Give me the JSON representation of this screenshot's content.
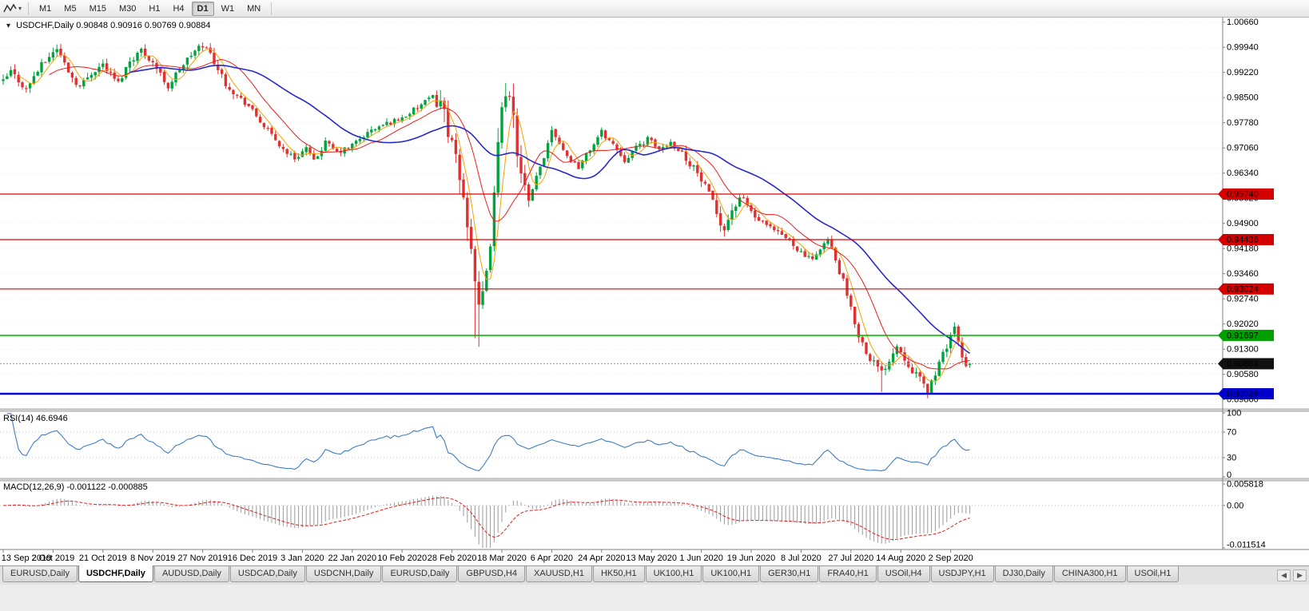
{
  "toolbar": {
    "timeframes": [
      {
        "label": "M1",
        "active": false
      },
      {
        "label": "M5",
        "active": false
      },
      {
        "label": "M15",
        "active": false
      },
      {
        "label": "M30",
        "active": false
      },
      {
        "label": "H1",
        "active": false
      },
      {
        "label": "H4",
        "active": false
      },
      {
        "label": "D1",
        "active": true
      },
      {
        "label": "W1",
        "active": false
      },
      {
        "label": "MN",
        "active": false
      }
    ]
  },
  "icons": {
    "legend_marker": "▾",
    "tool_caret": "▾",
    "tab_scroll_left": "◀",
    "tab_scroll_right": "▶"
  },
  "chart": {
    "legend_symbol": "USDCHF,Daily",
    "legend_ohlc": "0.90848 0.90916 0.90769 0.90884",
    "candle_up_color": "#00A33E",
    "candle_down_color": "#E03030",
    "grid_color": "#ededed",
    "axis_color": "#808080",
    "price_axis": {
      "labels": [
        "1.00660",
        "0.99940",
        "0.99220",
        "0.98500",
        "0.97780",
        "0.97060",
        "0.96340",
        "0.95620",
        "0.94900",
        "0.94180",
        "0.93460",
        "0.92740",
        "0.92020",
        "0.91300",
        "0.90580",
        "0.89860"
      ]
    }
  },
  "rsi": {
    "label": "RSI(14) 46.6946",
    "period": 14,
    "value": 46.6946,
    "color": "#3F7CC4",
    "scale_labels": [
      {
        "text": "100",
        "value": 100
      },
      {
        "text": "70",
        "value": 70
      },
      {
        "text": "30",
        "value": 30
      },
      {
        "text": "0",
        "value": 0
      }
    ],
    "level_lines": [
      70,
      30
    ]
  },
  "macd": {
    "label": "MACD(12,26,9) -0.001122 -0.000885",
    "params": "12,26,9",
    "main_value": -0.001122,
    "signal_value": -0.000885,
    "histogram_color": "#9B9B9B",
    "signal_color": "#E02020",
    "axis_labels": [
      {
        "text": "0.005818",
        "value": 0.005818
      },
      {
        "text": "0.00",
        "value": 0
      },
      {
        "text": "-0.011514",
        "value": -0.011514
      }
    ]
  },
  "tabs": [
    {
      "label": "EURUSD,Daily",
      "active": false
    },
    {
      "label": "USDCHF,Daily",
      "active": true
    },
    {
      "label": "AUDUSD,Daily",
      "active": false
    },
    {
      "label": "USDCAD,Daily",
      "active": false
    },
    {
      "label": "USDCNH,Daily",
      "active": false
    },
    {
      "label": "EURUSD,Daily",
      "active": false
    },
    {
      "label": "GBPUSD,H4",
      "active": false
    },
    {
      "label": "XAUUSD,H1",
      "active": false
    },
    {
      "label": "HK50,H1",
      "active": false
    },
    {
      "label": "UK100,H1",
      "active": false
    },
    {
      "label": "UK100,H1",
      "active": false
    },
    {
      "label": "GER30,H1",
      "active": false
    },
    {
      "label": "FRA40,H1",
      "active": false
    },
    {
      "label": "USOil,H4",
      "active": false
    },
    {
      "label": "USDJPY,H1",
      "active": false
    },
    {
      "label": "DJ30,Daily",
      "active": false
    },
    {
      "label": "CHINA300,H1",
      "active": false
    },
    {
      "label": "USOil,H1",
      "active": false
    }
  ],
  "chart_data": {
    "type": "candlestick",
    "symbol": "USDCHF",
    "timeframe": "Daily",
    "bars": 253,
    "y_range": [
      0.8959,
      1.0079
    ],
    "last_bar": {
      "open": 0.90848,
      "high": 0.90916,
      "low": 0.90769,
      "close": 0.90884
    },
    "date_labels": [
      "13 Sep 2019",
      "2 Oct 2019",
      "21 Oct 2019",
      "8 Nov 2019",
      "27 Nov 2019",
      "16 Dec 2019",
      "3 Jan 2020",
      "22 Jan 2020",
      "10 Feb 2020",
      "28 Feb 2020",
      "18 Mar 2020",
      "6 Apr 2020",
      "24 Apr 2020",
      "13 May 2020",
      "1 Jun 2020",
      "19 Jun 2020",
      "8 Jul 2020",
      "27 Jul 2020",
      "14 Aug 2020",
      "2 Sep 2020"
    ],
    "date_label_step": 13,
    "anchors": [
      [
        0,
        0.9895
      ],
      [
        2,
        0.9925
      ],
      [
        4,
        0.99
      ],
      [
        6,
        0.9872
      ],
      [
        8,
        0.9912
      ],
      [
        10,
        0.9942
      ],
      [
        12,
        0.9968
      ],
      [
        14,
        0.9992
      ],
      [
        16,
        0.9948
      ],
      [
        18,
        0.9908
      ],
      [
        20,
        0.9882
      ],
      [
        23,
        0.9922
      ],
      [
        26,
        0.9946
      ],
      [
        28,
        0.9916
      ],
      [
        30,
        0.9892
      ],
      [
        33,
        0.9956
      ],
      [
        36,
        0.9986
      ],
      [
        39,
        0.9952
      ],
      [
        41,
        0.9916
      ],
      [
        43,
        0.9882
      ],
      [
        46,
        0.9932
      ],
      [
        49,
        0.9972
      ],
      [
        52,
        1.0002
      ],
      [
        54,
        0.9976
      ],
      [
        56,
        0.9932
      ],
      [
        58,
        0.9892
      ],
      [
        61,
        0.9856
      ],
      [
        64,
        0.9826
      ],
      [
        67,
        0.9782
      ],
      [
        70,
        0.9742
      ],
      [
        73,
        0.9702
      ],
      [
        76,
        0.9676
      ],
      [
        79,
        0.9706
      ],
      [
        81,
        0.9666
      ],
      [
        84,
        0.9722
      ],
      [
        87,
        0.9692
      ],
      [
        90,
        0.9706
      ],
      [
        93,
        0.9732
      ],
      [
        96,
        0.9756
      ],
      [
        100,
        0.9776
      ],
      [
        104,
        0.9792
      ],
      [
        108,
        0.9822
      ],
      [
        112,
        0.9852
      ],
      [
        114,
        0.9842
      ],
      [
        116,
        0.9762
      ],
      [
        118,
        0.9662
      ],
      [
        120,
        0.9562
      ],
      [
        122,
        0.9432
      ],
      [
        124,
        0.9232
      ],
      [
        126,
        0.9332
      ],
      [
        128,
        0.9562
      ],
      [
        130,
        0.9842
      ],
      [
        131,
        0.9878
      ],
      [
        133,
        0.9782
      ],
      [
        135,
        0.9622
      ],
      [
        137,
        0.9542
      ],
      [
        139,
        0.9622
      ],
      [
        141,
        0.9682
      ],
      [
        143,
        0.9762
      ],
      [
        145,
        0.9722
      ],
      [
        147,
        0.9682
      ],
      [
        150,
        0.9652
      ],
      [
        153,
        0.9702
      ],
      [
        156,
        0.9752
      ],
      [
        159,
        0.9716
      ],
      [
        162,
        0.9672
      ],
      [
        165,
        0.9706
      ],
      [
        168,
        0.9732
      ],
      [
        171,
        0.9702
      ],
      [
        174,
        0.9722
      ],
      [
        177,
        0.9692
      ],
      [
        180,
        0.9652
      ],
      [
        183,
        0.9592
      ],
      [
        186,
        0.9522
      ],
      [
        188,
        0.9472
      ],
      [
        190,
        0.9532
      ],
      [
        193,
        0.9562
      ],
      [
        196,
        0.9506
      ],
      [
        199,
        0.9482
      ],
      [
        202,
        0.9462
      ],
      [
        205,
        0.9442
      ],
      [
        208,
        0.9406
      ],
      [
        211,
        0.9382
      ],
      [
        213,
        0.9422
      ],
      [
        215,
        0.9442
      ],
      [
        217,
        0.9382
      ],
      [
        219,
        0.9322
      ],
      [
        221,
        0.9242
      ],
      [
        223,
        0.9172
      ],
      [
        225,
        0.9122
      ],
      [
        227,
        0.9092
      ],
      [
        229,
        0.9062
      ],
      [
        231,
        0.9102
      ],
      [
        233,
        0.9142
      ],
      [
        235,
        0.9106
      ],
      [
        237,
        0.9072
      ],
      [
        239,
        0.9042
      ],
      [
        241,
        0.9012
      ],
      [
        243,
        0.9062
      ],
      [
        245,
        0.9112
      ],
      [
        247,
        0.9172
      ],
      [
        248,
        0.9196
      ],
      [
        249,
        0.9142
      ],
      [
        250,
        0.9102
      ],
      [
        251,
        0.9076
      ],
      [
        252,
        0.90884
      ]
    ],
    "base_volatility": 0.0012,
    "volatility_zones": [
      [
        0,
        60,
        0.0016
      ],
      [
        113,
        137,
        0.0045
      ],
      [
        178,
        192,
        0.0022
      ],
      [
        216,
        252,
        0.0018
      ]
    ],
    "key_extremes": {
      "lows": [
        [
          123,
          0.9162
        ],
        [
          124,
          0.9137
        ],
        [
          229,
          0.9008
        ],
        [
          241,
          0.8996
        ]
      ],
      "highs": [
        [
          14,
          1.0002
        ],
        [
          52,
          1.0008
        ],
        [
          131,
          0.9892
        ],
        [
          248,
          0.9207
        ]
      ]
    },
    "moving_averages": [
      {
        "period": 5,
        "color": "#F5A300",
        "width": 1
      },
      {
        "period": 13,
        "color": "#EE1C1C",
        "width": 1
      },
      {
        "period": 34,
        "color": "#2828CF",
        "width": 1.6
      }
    ],
    "levels": [
      {
        "price": 0.9574,
        "text": "0.95740",
        "line_color": "#E00000",
        "tag_bg": "#D40000",
        "width": 1.2
      },
      {
        "price": 0.94436,
        "text": "0.94436",
        "line_color": "#E00000",
        "tag_bg": "#D40000",
        "width": 1.2
      },
      {
        "price": 0.93024,
        "text": "0.93024",
        "line_color": "#E00000",
        "tag_bg": "#D40000",
        "width": 1.2
      },
      {
        "price": 0.91697,
        "text": "0.91697",
        "line_color": "#00C000",
        "tag_bg": "#00A000",
        "width": 1.6
      },
      {
        "price": 0.90026,
        "text": "0.90026",
        "line_color": "#0000E0",
        "tag_bg": "#0000CC",
        "width": 2.6
      }
    ],
    "current_price": {
      "text": "0.90884",
      "price": 0.90884,
      "tag_bg": "#111111",
      "line_color": "#9A9A9A"
    }
  }
}
